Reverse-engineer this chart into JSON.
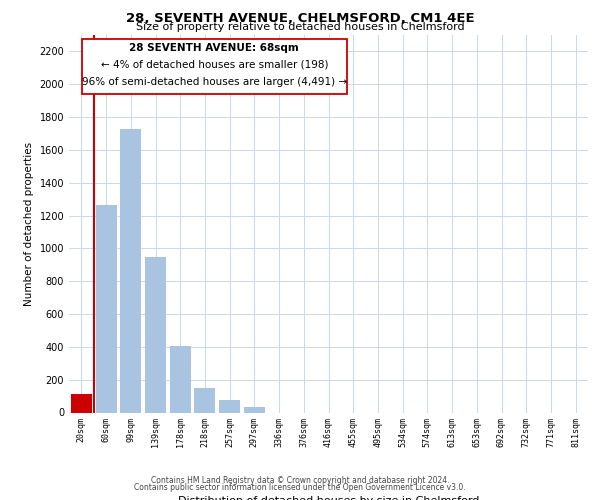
{
  "title": "28, SEVENTH AVENUE, CHELMSFORD, CM1 4EE",
  "subtitle": "Size of property relative to detached houses in Chelmsford",
  "xlabel": "Distribution of detached houses by size in Chelmsford",
  "ylabel": "Number of detached properties",
  "bar_labels": [
    "20sqm",
    "60sqm",
    "99sqm",
    "139sqm",
    "178sqm",
    "218sqm",
    "257sqm",
    "297sqm",
    "336sqm",
    "376sqm",
    "416sqm",
    "455sqm",
    "495sqm",
    "534sqm",
    "574sqm",
    "613sqm",
    "653sqm",
    "692sqm",
    "732sqm",
    "771sqm",
    "811sqm"
  ],
  "bar_values": [
    115,
    1265,
    1730,
    945,
    405,
    150,
    75,
    35,
    0,
    0,
    0,
    0,
    0,
    0,
    0,
    0,
    0,
    0,
    0,
    0,
    0
  ],
  "highlight_bar_index": 0,
  "highlight_color": "#cc0000",
  "normal_color": "#a8c4e0",
  "ylim": [
    0,
    2300
  ],
  "yticks": [
    0,
    200,
    400,
    600,
    800,
    1000,
    1200,
    1400,
    1600,
    1800,
    2000,
    2200
  ],
  "annotation_title": "28 SEVENTH AVENUE: 68sqm",
  "annotation_line1": "← 4% of detached houses are smaller (198)",
  "annotation_line2": "96% of semi-detached houses are larger (4,491) →",
  "vline_x": 0.5,
  "footer_line1": "Contains HM Land Registry data © Crown copyright and database right 2024.",
  "footer_line2": "Contains public sector information licensed under the Open Government Licence v3.0.",
  "background_color": "#ffffff",
  "grid_color": "#c8d8e8"
}
